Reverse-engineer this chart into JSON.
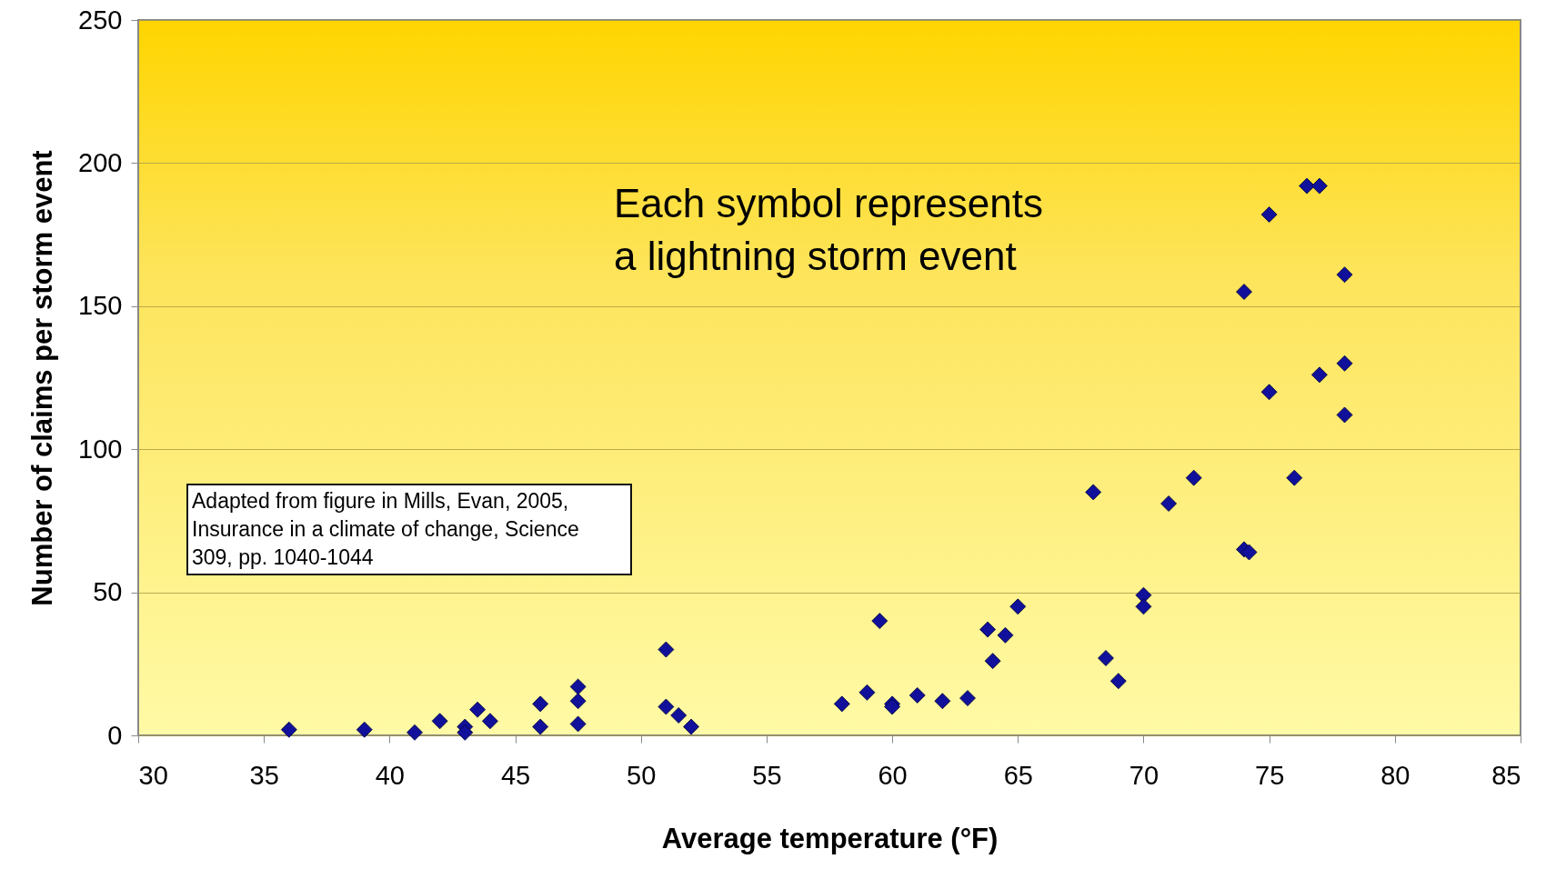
{
  "chart_data": {
    "type": "scatter",
    "xlabel": "Average temperature (°F)",
    "ylabel": "Number of claims per storm event",
    "annotations": [
      "Each symbol represents\na lightning storm event",
      "Adapted from figure in Mills, Evan, 2005,\nInsurance in a climate of change, Science\n309, pp. 1040-1044"
    ],
    "x": [
      36,
      39,
      41,
      42,
      43,
      43,
      43.5,
      44,
      46,
      46,
      47.5,
      47.5,
      47.5,
      51,
      51,
      51.5,
      52,
      58,
      59,
      59.5,
      60,
      60,
      61,
      62,
      63,
      63.8,
      64,
      64.5,
      65,
      68,
      68.5,
      69,
      70,
      70,
      71,
      72,
      74,
      74,
      74.2,
      75,
      75,
      76,
      76.5,
      77,
      77,
      78,
      78,
      78
    ],
    "series": [
      {
        "color": "#10109a",
        "values": [
          2,
          2,
          1,
          5,
          3,
          1,
          9,
          5,
          11,
          3,
          17,
          12,
          4,
          30,
          10,
          7,
          3,
          11,
          15,
          40,
          11,
          10,
          14,
          12,
          13,
          37,
          26,
          35,
          45,
          85,
          27,
          19,
          49,
          45,
          81,
          90,
          155,
          65,
          64,
          182,
          120,
          90,
          192,
          192,
          126,
          161,
          130,
          112
        ]
      }
    ],
    "xlim": [
      30,
      85
    ],
    "xticks": [
      30,
      35,
      40,
      45,
      50,
      55,
      60,
      65,
      70,
      75,
      80,
      85
    ],
    "ylim": [
      0,
      250
    ],
    "yticks": [
      0,
      50,
      100,
      150,
      200,
      250
    ],
    "grid": "y",
    "marker": "diamond"
  }
}
